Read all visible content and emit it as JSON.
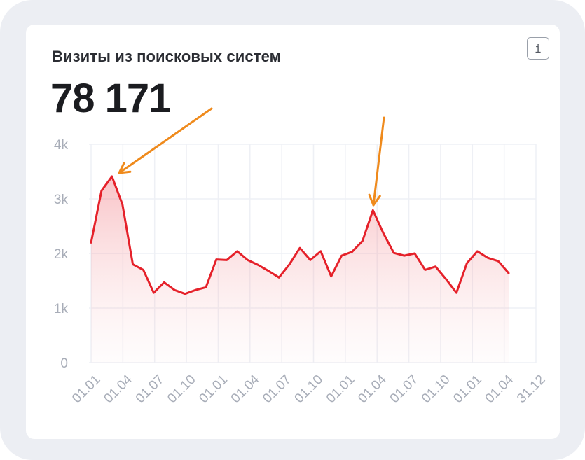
{
  "card": {
    "title": "Визиты из поисковых систем",
    "total": "78 171",
    "info_icon_glyph": "i"
  },
  "chart_data": {
    "type": "area",
    "title": "Визиты из поисковых систем",
    "ylim": [
      0,
      4000
    ],
    "y_tick_labels": [
      "0",
      "1k",
      "2k",
      "3k",
      "4k"
    ],
    "y_tick_values": [
      0,
      1000,
      2000,
      3000,
      4000
    ],
    "x_tick_labels": [
      "01.01",
      "01.04",
      "01.07",
      "01.10",
      "01.01",
      "01.04",
      "01.07",
      "01.10",
      "01.01",
      "01.04",
      "01.07",
      "01.10",
      "01.01",
      "01.04",
      "31.12"
    ],
    "grid": true,
    "series": [
      {
        "color": "#e5212a",
        "fill_color": "#f6b6ba",
        "values": [
          2200,
          3150,
          3410,
          2900,
          1800,
          1700,
          1280,
          1470,
          1330,
          1260,
          1330,
          1380,
          1890,
          1880,
          2040,
          1880,
          1790,
          1680,
          1560,
          1800,
          2100,
          1880,
          2040,
          1580,
          1960,
          2030,
          2230,
          2790,
          2370,
          2010,
          1960,
          2000,
          1700,
          1760,
          1530,
          1280,
          1820,
          2040,
          1920,
          1860,
          1640
        ]
      }
    ],
    "annotations": [
      {
        "type": "arrow",
        "color": "#ef8a1c",
        "points_to_index": 2
      },
      {
        "type": "arrow",
        "color": "#ef8a1c",
        "points_to_index": 27
      }
    ]
  }
}
